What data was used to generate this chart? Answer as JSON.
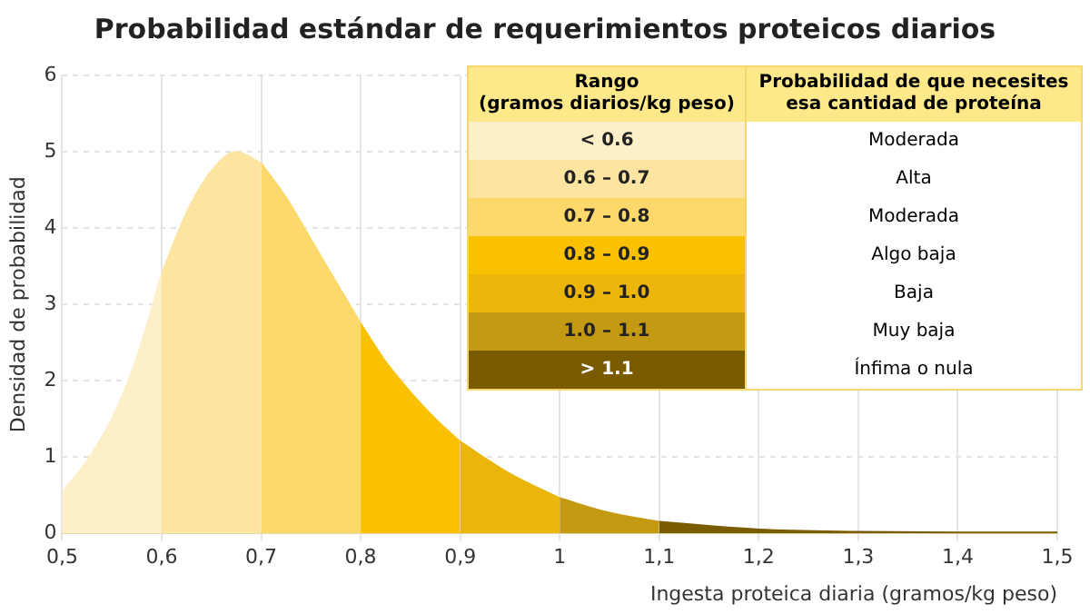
{
  "chart_data": {
    "type": "area",
    "title": "Probabilidad estándar de requerimientos proteicos diarios",
    "xlabel": "Ingesta proteica diaria (gramos/kg peso)",
    "ylabel": "Densidad de probabilidad",
    "xlim": [
      0.5,
      1.5
    ],
    "xticks": [
      {
        "value": 0.5,
        "label": "0,5"
      },
      {
        "value": 0.6,
        "label": "0,6"
      },
      {
        "value": 0.7,
        "label": "0,7"
      },
      {
        "value": 0.8,
        "label": "0,8"
      },
      {
        "value": 0.9,
        "label": "0,9"
      },
      1,
      {
        "value": 1.1,
        "label": "1,1"
      },
      {
        "value": 1.2,
        "label": "1,2"
      },
      {
        "value": 1.3,
        "label": "1,3"
      },
      {
        "value": 1.4,
        "label": "1,4"
      },
      {
        "value": 1.5,
        "label": "1,5"
      }
    ],
    "ylim": [
      0,
      6
    ],
    "yticks": [
      0,
      1,
      2,
      3,
      4,
      5,
      6
    ],
    "grid": true,
    "legend": "top right",
    "legend_title": "Rango\n(gramos diarios/kg peso)",
    "series": [
      {
        "name": "< 0.6",
        "color": "#fdf0c8",
        "x": [
          0.5,
          0.525,
          0.55,
          0.575,
          0.6
        ],
        "values": [
          0.54,
          0.95,
          1.5,
          2.3,
          3.4
        ]
      },
      {
        "name": "0.6 – 0.7",
        "color": "#fde4a0",
        "x": [
          0.6,
          0.625,
          0.65,
          0.675,
          0.7
        ],
        "values": [
          3.4,
          4.2,
          4.75,
          5.0,
          4.85
        ]
      },
      {
        "name": "0.7 – 0.8",
        "color": "#fdd86a",
        "x": [
          0.7,
          0.725,
          0.75,
          0.775,
          0.8
        ],
        "values": [
          4.85,
          4.4,
          3.85,
          3.3,
          2.75
        ]
      },
      {
        "name": "0.8 – 0.9",
        "color": "#f9c100",
        "x": [
          0.8,
          0.825,
          0.85,
          0.875,
          0.9
        ],
        "values": [
          2.75,
          2.25,
          1.85,
          1.5,
          1.2
        ]
      },
      {
        "name": "0.9 – 1.0",
        "color": "#ebb50a",
        "x": [
          0.9,
          0.95,
          1.0
        ],
        "values": [
          1.2,
          0.78,
          0.46
        ]
      },
      {
        "name": "1.0 – 1.1",
        "color": "#c39a12",
        "x": [
          1.0,
          1.05,
          1.1
        ],
        "values": [
          0.46,
          0.27,
          0.15
        ]
      },
      {
        "name": "> 1.1",
        "color": "#7a5c00",
        "x": [
          1.1,
          1.2,
          1.3,
          1.4,
          1.5
        ],
        "values": [
          0.15,
          0.05,
          0.02,
          0.01,
          0.01
        ]
      }
    ],
    "annotations": [
      "Probabilidad de que necesites esa cantidad de proteína",
      "Moderada",
      "Alta",
      "Moderada",
      "Algo baja",
      "Baja",
      "Muy baja",
      "Ínfima o nula"
    ]
  }
}
